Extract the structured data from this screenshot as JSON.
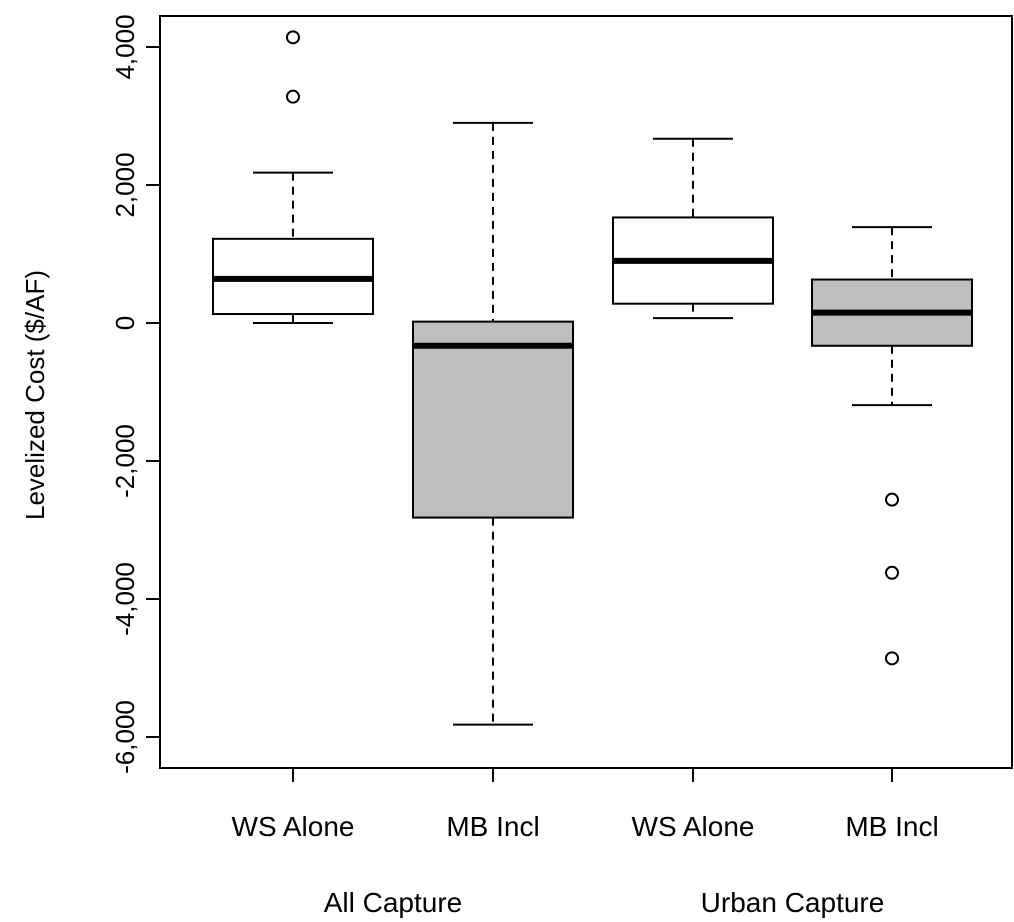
{
  "chart_data": {
    "type": "boxplot",
    "ylabel": "Levelized Cost ($/AF)",
    "ylim": [
      -6400,
      4400
    ],
    "yticks": [
      {
        "value": 4000,
        "label": "4,000"
      },
      {
        "value": 2000,
        "label": "2,000"
      },
      {
        "value": 0,
        "label": "0"
      },
      {
        "value": -2000,
        "label": "-2,000"
      },
      {
        "value": -4000,
        "label": "-4,000"
      },
      {
        "value": -6000,
        "label": "-6,000"
      }
    ],
    "groups": [
      {
        "label": "All Capture",
        "categories": [
          "WS Alone",
          "MB Incl"
        ]
      },
      {
        "label": "Urban Capture",
        "categories": [
          "WS Alone",
          "MB Incl"
        ]
      }
    ],
    "boxes": [
      {
        "category": "WS Alone",
        "group": "All Capture",
        "fill": "#ffffff",
        "whisker_low": 0,
        "q1": 130,
        "median": 640,
        "q3": 1220,
        "whisker_high": 2180,
        "outliers": [
          3280,
          4140
        ]
      },
      {
        "category": "MB Incl",
        "group": "All Capture",
        "fill": "#bebebe",
        "whisker_low": -5820,
        "q1": -2820,
        "median": -330,
        "q3": 20,
        "whisker_high": 2900,
        "outliers": []
      },
      {
        "category": "WS Alone",
        "group": "Urban Capture",
        "fill": "#ffffff",
        "whisker_low": 70,
        "q1": 280,
        "median": 900,
        "q3": 1530,
        "whisker_high": 2670,
        "outliers": []
      },
      {
        "category": "MB Incl",
        "group": "Urban Capture",
        "fill": "#bebebe",
        "whisker_low": -1190,
        "q1": -330,
        "median": 150,
        "q3": 630,
        "whisker_high": 1390,
        "outliers": [
          -2560,
          -3620,
          -4860
        ]
      }
    ]
  }
}
